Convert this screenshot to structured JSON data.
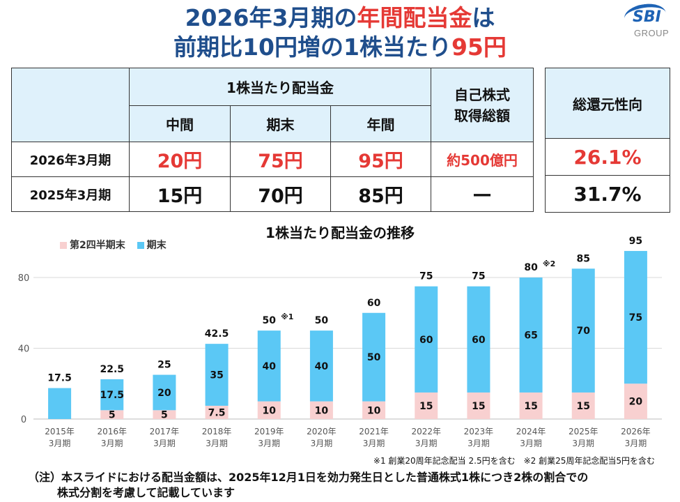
{
  "header": {
    "title_line1_a": "2026年3月期の",
    "title_line1_b": "年間配当金",
    "title_line1_c": "は",
    "title_line2_a": "前期比10円増の1株当たり",
    "title_line2_b": "95円"
  },
  "logo": {
    "name": "SBI",
    "sub": "GROUP"
  },
  "table": {
    "group_header": "1株当たり配当金",
    "col_interim": "中間",
    "col_year_end": "期末",
    "col_annual": "年間",
    "col_buyback": "自己株式\n取得総額",
    "rows": [
      {
        "label": "2026年3月期",
        "interim": "20円",
        "year_end": "75円",
        "annual": "95円",
        "buyback": "約500億円"
      },
      {
        "label": "2025年3月期",
        "interim": "15円",
        "year_end": "70円",
        "annual": "85円",
        "buyback": "—"
      }
    ],
    "payout_header": "総還元性向",
    "payout": [
      "26.1%",
      "31.7%"
    ]
  },
  "chart_data": {
    "type": "bar",
    "title": "1株当たり配当金の推移",
    "stacked": true,
    "categories": [
      "2015年\n3月期",
      "2016年\n3月期",
      "2017年\n3月期",
      "2018年\n3月期",
      "2019年\n3月期",
      "2020年\n3月期",
      "2021年\n3月期",
      "2022年\n3月期",
      "2023年\n3月期",
      "2024年\n3月期",
      "2025年\n3月期",
      "2026年\n3月期"
    ],
    "series": [
      {
        "name": "第2四半期末",
        "color": "#f8d0d0",
        "values": [
          0,
          5,
          5,
          7.5,
          10,
          10,
          10,
          15,
          15,
          15,
          15,
          20
        ]
      },
      {
        "name": "期末",
        "color": "#5bc8f5",
        "values": [
          17.5,
          17.5,
          20,
          35,
          40,
          40,
          50,
          60,
          60,
          65,
          70,
          75
        ]
      }
    ],
    "totals": [
      "17.5",
      "22.5",
      "25",
      "42.5",
      "50",
      "50",
      "60",
      "75",
      "75",
      "80",
      "85",
      "95"
    ],
    "total_notes": [
      "",
      "",
      "",
      "",
      "※1",
      "",
      "",
      "",
      "",
      "※2",
      "",
      ""
    ],
    "ylim": [
      0,
      95
    ],
    "yticks": [
      0,
      40,
      80
    ],
    "legend_position": "top-left"
  },
  "notes": {
    "footnote": "※1 創業20周年記念配当 2.5円を含む　※2 創業25周年記念配当5円を含む",
    "remark_line1": "（注）本スライドにおける配当金額は、2025年12月1日を効力発生日とした普通株式1株につき2株の割合での",
    "remark_line2": "株式分割を考慮して記載しています"
  }
}
